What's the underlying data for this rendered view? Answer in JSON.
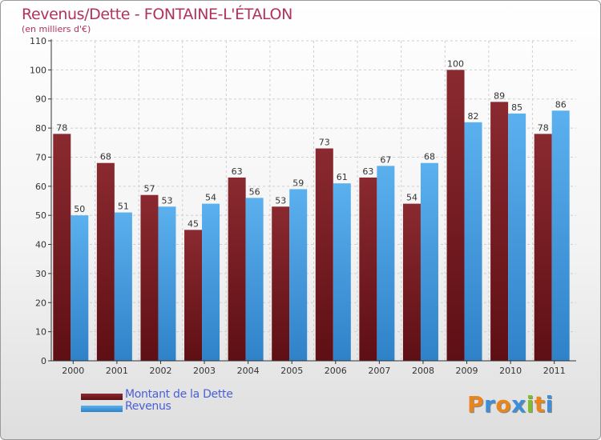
{
  "chart_data": {
    "type": "bar",
    "title": "Revenus/Dette - FONTAINE-L'ÉTALON",
    "subtitle": "(en milliers d'€)",
    "categories": [
      "2000",
      "2001",
      "2002",
      "2003",
      "2004",
      "2005",
      "2006",
      "2007",
      "2008",
      "2009",
      "2010",
      "2011"
    ],
    "series": [
      {
        "name": "Montant de la Dette",
        "values": [
          78,
          68,
          57,
          45,
          63,
          53,
          73,
          63,
          54,
          100,
          89,
          78
        ],
        "color": "#7a1f24"
      },
      {
        "name": "Revenus",
        "values": [
          50,
          51,
          53,
          54,
          56,
          59,
          61,
          67,
          68,
          82,
          85,
          86
        ],
        "color": "#4aa3e6"
      }
    ],
    "ylim": [
      0,
      110
    ],
    "yticks": [
      0,
      10,
      20,
      30,
      40,
      50,
      60,
      70,
      80,
      90,
      100,
      110
    ],
    "grid": true,
    "legend_position": "bottom-left"
  },
  "logo": {
    "text": "Proxiti",
    "letters": [
      "P",
      "r",
      "o",
      "x",
      "i",
      "t",
      "i"
    ],
    "colors": [
      "#e8851c",
      "#3d8ed8",
      "#e8851c",
      "#3d8ed8",
      "#7bbf2a",
      "#e8851c",
      "#3d8ed8"
    ]
  }
}
